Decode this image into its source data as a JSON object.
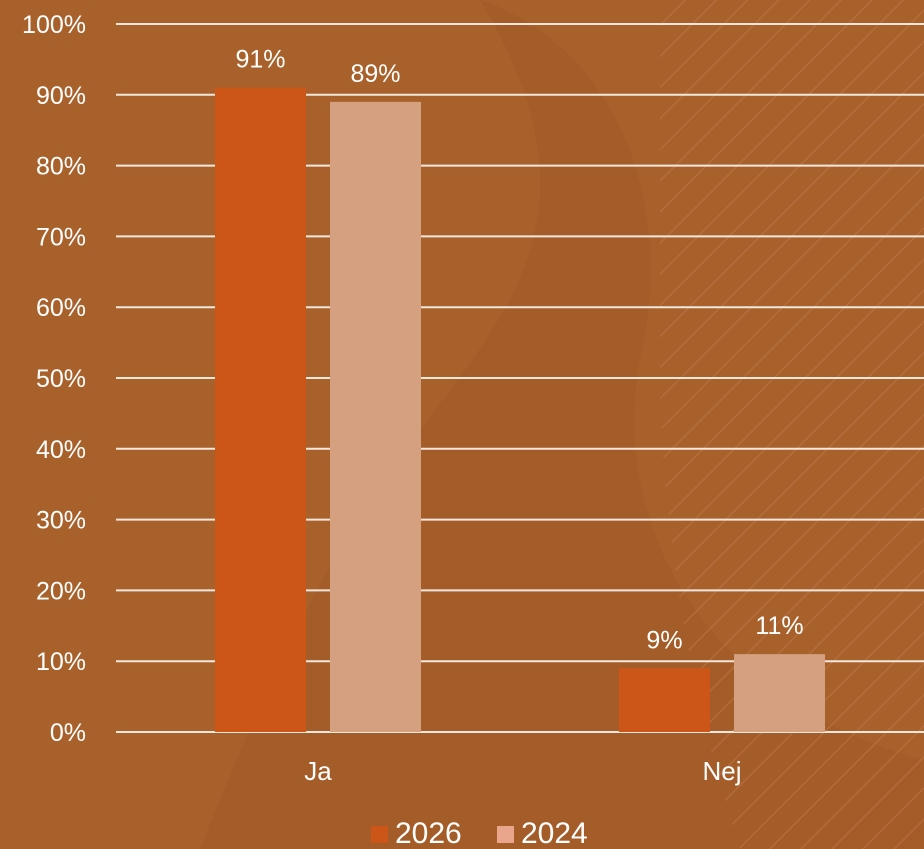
{
  "chart_data": {
    "type": "bar",
    "categories": [
      "Ja",
      "Nej"
    ],
    "series": [
      {
        "name": "2026",
        "values": [
          91,
          9
        ],
        "labels": [
          "91%",
          "9%"
        ]
      },
      {
        "name": "2024",
        "values": [
          89,
          11
        ],
        "labels": [
          "89%",
          "11%"
        ]
      }
    ],
    "y_ticks": [
      "0%",
      "10%",
      "20%",
      "30%",
      "40%",
      "50%",
      "60%",
      "70%",
      "80%",
      "90%",
      "100%"
    ],
    "ylim": [
      0,
      100
    ],
    "grid": true,
    "legend_position": "bottom"
  },
  "colors": {
    "background": "#A8612B",
    "background_shade": "#9F5A28",
    "series_2026": "#CC5617",
    "series_2024": "#D5A07F",
    "legend_2024": "#E9A68D",
    "gridline": "#F3E7DE",
    "text": "#FFFFFF"
  }
}
